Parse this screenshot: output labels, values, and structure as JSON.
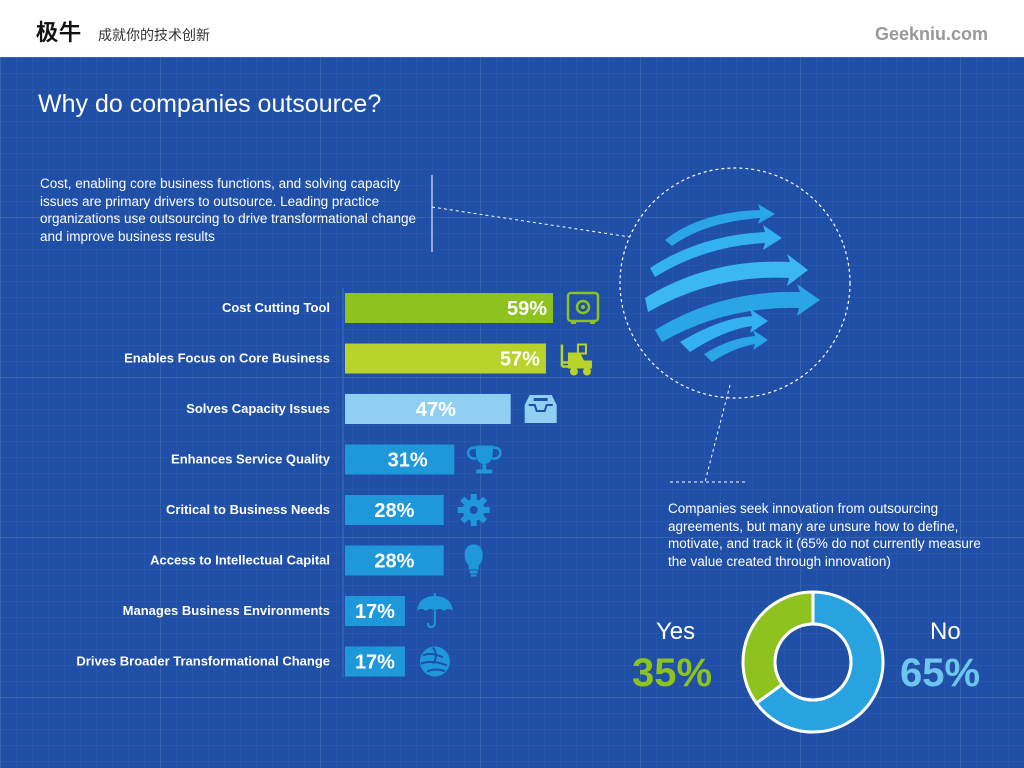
{
  "header": {
    "logo": "极牛",
    "slogan": "成就你的技术创新",
    "site": "Geekniu.com"
  },
  "title": "Why do companies outsource?",
  "intro": "Cost, enabling core business functions, and solving capacity issues are primary drivers to outsource. Leading practice organizations use outsourcing to drive transformational change and improve business results",
  "innovation_text": "Companies seek innovation from outsourcing agreements, but many are unsure how to define, motivate, and track it (65% do not currently measure the value created through innovation)",
  "chart_data": [
    {
      "type": "bar",
      "orientation": "horizontal",
      "categories": [
        "Cost Cutting Tool",
        "Enables Focus on Core Business",
        "Solves Capacity Issues",
        "Enhances Service Quality",
        "Critical to Business Needs",
        "Access to Intellectual Capital",
        "Manages Business Environments",
        "Drives Broader Transformational Change"
      ],
      "values": [
        59,
        57,
        47,
        31,
        28,
        28,
        17,
        17
      ],
      "value_labels": [
        "59%",
        "57%",
        "47%",
        "31%",
        "28%",
        "28%",
        "17%",
        "17%"
      ],
      "value_unit": "%",
      "bar_colors": [
        "#8ec31f",
        "#b8d32a",
        "#8fd0f2",
        "#1e98d8",
        "#1e98d8",
        "#1e98d8",
        "#1e98d8",
        "#1e98d8"
      ],
      "icons": [
        "safe-icon",
        "forklift-icon",
        "inbox-tray-icon",
        "trophy-icon",
        "gear-icon",
        "lightbulb-icon",
        "umbrella-icon",
        "globe-icon"
      ],
      "grid": false
    },
    {
      "type": "pie",
      "variant": "donut",
      "labels": [
        "Yes",
        "No"
      ],
      "values": [
        35,
        65
      ],
      "value_labels": [
        "35%",
        "65%"
      ],
      "colors": [
        "#8ec31f",
        "#29a3df"
      ]
    }
  ],
  "colors": {
    "background": "#1f4fa6",
    "accent_green": "#8ec31f",
    "accent_blue": "#29a3df"
  }
}
